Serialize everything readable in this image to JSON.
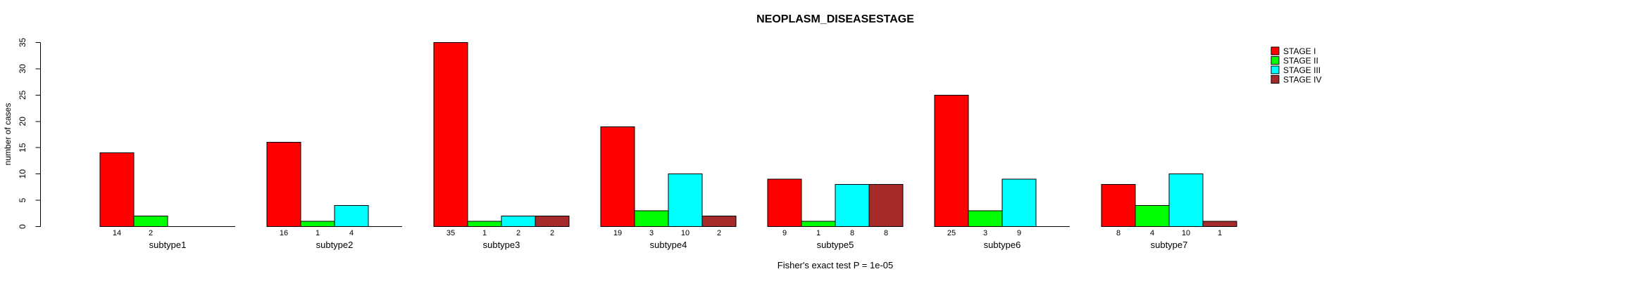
{
  "chart_data": {
    "type": "bar",
    "title": "NEOPLASM_DISEASESTAGE",
    "ylabel": "number of cases",
    "xlabel": "",
    "caption": "Fisher's exact test P = 1e-05",
    "categories": [
      "subtype1",
      "subtype2",
      "subtype3",
      "subtype4",
      "subtype5",
      "subtype6",
      "subtype7"
    ],
    "series": [
      {
        "name": "STAGE I",
        "color": "#FF0000",
        "values": [
          14,
          16,
          35,
          19,
          9,
          25,
          8
        ]
      },
      {
        "name": "STAGE II",
        "color": "#00FF00",
        "values": [
          2,
          1,
          1,
          3,
          1,
          3,
          4
        ]
      },
      {
        "name": "STAGE III",
        "color": "#00FFFF",
        "values": [
          0,
          4,
          2,
          10,
          8,
          9,
          10
        ]
      },
      {
        "name": "STAGE IV",
        "color": "#A52A2A",
        "values": [
          0,
          0,
          2,
          2,
          8,
          0,
          1
        ]
      }
    ],
    "ylim": [
      0,
      35
    ],
    "yticks": [
      0,
      5,
      10,
      15,
      20,
      25,
      30,
      35
    ],
    "grid": false,
    "legend_position": "right-inside",
    "bar_value_labels": "shown under each bar, omitted when value is 0",
    "tick_label_orientation": "rotated 90deg (parallel to y axis)"
  },
  "colors": {
    "background": "#FFFFFF",
    "axis": "#000000",
    "text": "#000000"
  }
}
